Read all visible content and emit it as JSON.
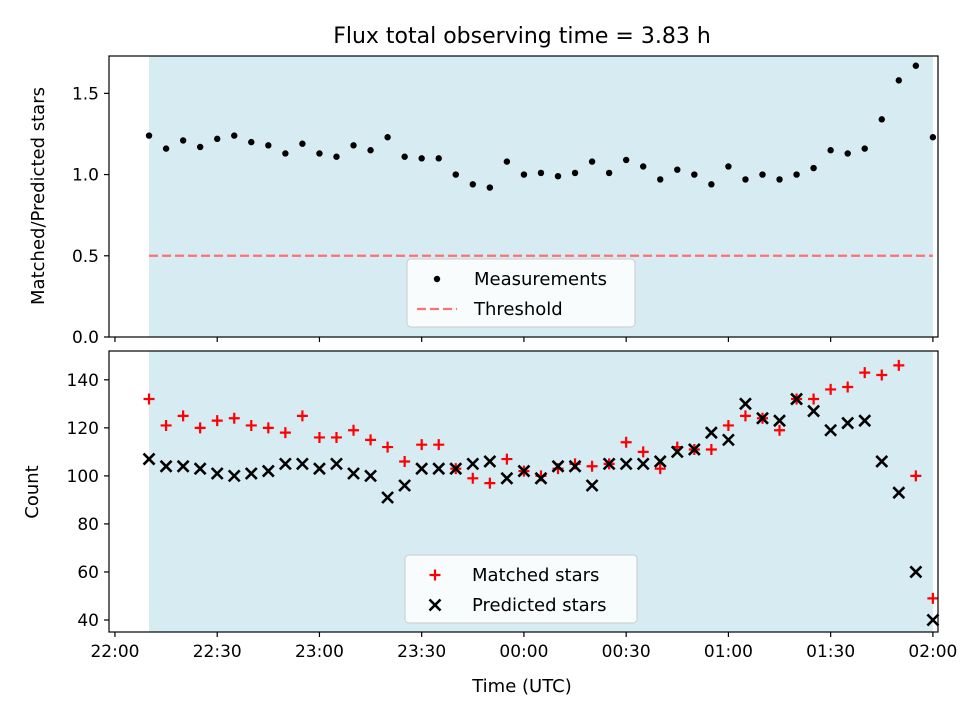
{
  "chart_data": [
    {
      "type": "scatter",
      "title": "Flux total observing time = 3.83 h",
      "ylabel": "Matched/Predicted stars",
      "ylim": [
        0,
        1.73
      ],
      "yticks": [
        0.0,
        0.5,
        1.0,
        1.5
      ],
      "ytick_labels": [
        "0.0",
        "0.5",
        "1.0",
        "1.5"
      ],
      "shaded_span": [
        "22:10",
        "02:00"
      ],
      "shade_color": "#add8e6",
      "legend": [
        "Measurements",
        "Threshold"
      ],
      "legend_loc": "lower center",
      "series": [
        {
          "name": "Measurements",
          "marker": "dot",
          "color": "#000000",
          "x": [
            "22:10",
            "22:15",
            "22:20",
            "22:25",
            "22:30",
            "22:35",
            "22:40",
            "22:45",
            "22:50",
            "22:55",
            "23:00",
            "23:05",
            "23:10",
            "23:15",
            "23:20",
            "23:25",
            "23:30",
            "23:35",
            "23:40",
            "23:45",
            "23:50",
            "23:55",
            "00:00",
            "00:05",
            "00:10",
            "00:15",
            "00:20",
            "00:25",
            "00:30",
            "00:35",
            "00:40",
            "00:45",
            "00:50",
            "00:55",
            "01:00",
            "01:05",
            "01:10",
            "01:15",
            "01:20",
            "01:25",
            "01:30",
            "01:35",
            "01:40",
            "01:45",
            "01:50",
            "01:55",
            "02:00"
          ],
          "y": [
            1.24,
            1.16,
            1.21,
            1.17,
            1.22,
            1.24,
            1.2,
            1.18,
            1.13,
            1.19,
            1.13,
            1.11,
            1.18,
            1.15,
            1.23,
            1.11,
            1.1,
            1.1,
            1.0,
            0.94,
            0.92,
            1.08,
            1.0,
            1.01,
            0.99,
            1.01,
            1.08,
            1.01,
            1.09,
            1.05,
            0.97,
            1.03,
            1.0,
            0.94,
            1.05,
            0.97,
            1.0,
            0.97,
            1.0,
            1.04,
            1.15,
            1.13,
            1.16,
            1.34,
            1.58,
            1.67,
            1.23
          ]
        },
        {
          "name": "Threshold",
          "style": "dashed",
          "color": "#ff7070",
          "x": [
            "22:10",
            "02:00"
          ],
          "y": [
            0.5,
            0.5
          ]
        }
      ]
    },
    {
      "type": "scatter",
      "ylabel": "Count",
      "xlabel": "Time (UTC)",
      "ylim": [
        35,
        152
      ],
      "yticks": [
        40,
        60,
        80,
        100,
        120,
        140
      ],
      "ytick_labels": [
        "40",
        "60",
        "80",
        "100",
        "120",
        "140"
      ],
      "xticks": [
        "22:00",
        "22:30",
        "23:00",
        "23:30",
        "00:00",
        "00:30",
        "01:00",
        "01:30",
        "02:00"
      ],
      "shaded_span": [
        "22:10",
        "02:00"
      ],
      "shade_color": "#add8e6",
      "legend": [
        "Matched stars",
        "Predicted stars"
      ],
      "legend_loc": "lower center",
      "series": [
        {
          "name": "Matched stars",
          "marker": "plus",
          "color": "#ff0000",
          "x": [
            "22:10",
            "22:15",
            "22:20",
            "22:25",
            "22:30",
            "22:35",
            "22:40",
            "22:45",
            "22:50",
            "22:55",
            "23:00",
            "23:05",
            "23:10",
            "23:15",
            "23:20",
            "23:25",
            "23:30",
            "23:35",
            "23:40",
            "23:45",
            "23:50",
            "23:55",
            "00:00",
            "00:05",
            "00:10",
            "00:15",
            "00:20",
            "00:25",
            "00:30",
            "00:35",
            "00:40",
            "00:45",
            "00:50",
            "00:55",
            "01:00",
            "01:05",
            "01:10",
            "01:15",
            "01:20",
            "01:25",
            "01:30",
            "01:35",
            "01:40",
            "01:45",
            "01:50",
            "01:55",
            "02:00"
          ],
          "y": [
            132,
            121,
            125,
            120,
            123,
            124,
            121,
            120,
            118,
            125,
            116,
            116,
            119,
            115,
            112,
            106,
            113,
            113,
            103,
            99,
            97,
            107,
            102,
            100,
            103,
            105,
            104,
            105,
            114,
            110,
            103,
            112,
            111,
            111,
            121,
            125,
            124,
            119,
            132,
            132,
            136,
            137,
            143,
            142,
            146,
            100,
            49
          ]
        },
        {
          "name": "Predicted stars",
          "marker": "x",
          "color": "#000000",
          "x": [
            "22:10",
            "22:15",
            "22:20",
            "22:25",
            "22:30",
            "22:35",
            "22:40",
            "22:45",
            "22:50",
            "22:55",
            "23:00",
            "23:05",
            "23:10",
            "23:15",
            "23:20",
            "23:25",
            "23:30",
            "23:35",
            "23:40",
            "23:45",
            "23:50",
            "23:55",
            "00:00",
            "00:05",
            "00:10",
            "00:15",
            "00:20",
            "00:25",
            "00:30",
            "00:35",
            "00:40",
            "00:45",
            "00:50",
            "00:55",
            "01:00",
            "01:05",
            "01:10",
            "01:15",
            "01:20",
            "01:25",
            "01:30",
            "01:35",
            "01:40",
            "01:45",
            "01:50",
            "01:55",
            "02:00"
          ],
          "y": [
            107,
            104,
            104,
            103,
            101,
            100,
            101,
            102,
            105,
            105,
            103,
            105,
            101,
            100,
            91,
            96,
            103,
            103,
            103,
            105,
            106,
            99,
            102,
            99,
            104,
            104,
            96,
            105,
            105,
            105,
            106,
            110,
            111,
            118,
            115,
            130,
            124,
            123,
            132,
            127,
            119,
            122,
            123,
            106,
            93,
            60,
            40
          ]
        }
      ]
    }
  ]
}
